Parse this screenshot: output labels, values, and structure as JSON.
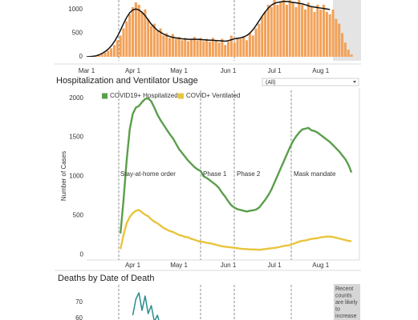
{
  "chart_data": [
    {
      "type": "bar",
      "ylim": [
        0,
        1200
      ],
      "yticks": [
        0,
        500,
        1000
      ],
      "categories": [
        "Mar 1",
        null,
        null,
        null,
        null,
        null,
        null,
        null,
        null,
        null,
        null,
        null,
        null,
        null,
        null,
        "Apr 1",
        null,
        null,
        null,
        null,
        null,
        null,
        null,
        null,
        null,
        null,
        null,
        null,
        null,
        null,
        "May 1",
        null,
        null,
        null,
        null,
        null,
        null,
        null,
        null,
        null,
        null,
        null,
        null,
        null,
        null,
        null,
        "Jun 1",
        null,
        null,
        null,
        null,
        null,
        null,
        null,
        null,
        null,
        null,
        null,
        null,
        null,
        null,
        "Jul 1",
        null,
        null,
        null,
        null,
        null,
        null,
        null,
        null,
        null,
        null,
        null,
        null,
        null,
        null,
        "Aug 1",
        null,
        null,
        null,
        null,
        null,
        null,
        null,
        null,
        null,
        null
      ],
      "series": [
        {
          "type": "bar",
          "color": "#f2a25a",
          "values": [
            0,
            5,
            10,
            20,
            40,
            60,
            90,
            130,
            180,
            250,
            350,
            450,
            600,
            750,
            900,
            1050,
            1150,
            1100,
            950,
            1000,
            800,
            650,
            700,
            550,
            600,
            450,
            500,
            400,
            480,
            380,
            420,
            350,
            400,
            330,
            380,
            420,
            350,
            400,
            330,
            380,
            320,
            400,
            350,
            300,
            380,
            250,
            320,
            450,
            300,
            400,
            380,
            420,
            350,
            500,
            450,
            600,
            700,
            850,
            950,
            1100,
            1050,
            1200,
            1100,
            1150,
            1250,
            1100,
            1200,
            1150,
            1050,
            1200,
            1100,
            1000,
            1150,
            1050,
            950,
            1100,
            1000,
            1100,
            950,
            900,
            1000,
            800,
            700,
            500,
            300,
            150,
            50
          ]
        },
        {
          "type": "line",
          "color": "#111111",
          "values": [
            0,
            5,
            10,
            20,
            40,
            70,
            110,
            160,
            230,
            320,
            430,
            560,
            700,
            830,
            930,
            990,
            1010,
            990,
            940,
            870,
            780,
            690,
            620,
            560,
            520,
            480,
            450,
            430,
            410,
            400,
            390,
            380,
            375,
            370,
            370,
            370,
            370,
            365,
            360,
            355,
            350,
            350,
            345,
            340,
            335,
            330,
            340,
            360,
            380,
            390,
            400,
            420,
            450,
            500,
            570,
            660,
            760,
            860,
            950,
            1030,
            1090,
            1130,
            1150,
            1160,
            1170,
            1170,
            1160,
            1150,
            1140,
            1130,
            1120,
            1100,
            1080,
            1060,
            1050,
            1040,
            1030,
            1020,
            1010,
            1000,
            null,
            null,
            null,
            null,
            null,
            null,
            null
          ]
        }
      ]
    },
    {
      "type": "line",
      "title": "Hospitalization and Ventilator Usage",
      "ylabel": "Number of Cases",
      "ylim": [
        -70,
        2100
      ],
      "yticks": [
        0,
        500,
        1000,
        1500,
        2000
      ],
      "annotations": [
        "Stay-at-home order",
        "Phase 1",
        "Phase 2",
        "Mask mandate"
      ],
      "categories": [
        null,
        null,
        null,
        null,
        null,
        null,
        null,
        null,
        null,
        null,
        null,
        null,
        null,
        null,
        null,
        "Apr 1",
        null,
        null,
        null,
        null,
        null,
        null,
        null,
        null,
        null,
        null,
        null,
        null,
        null,
        null,
        "May 1",
        null,
        null,
        null,
        null,
        null,
        null,
        null,
        null,
        null,
        null,
        null,
        null,
        null,
        null,
        null,
        "Jun 1",
        null,
        null,
        null,
        null,
        null,
        null,
        null,
        null,
        null,
        null,
        null,
        null,
        null,
        null,
        "Jul 1",
        null,
        null,
        null,
        null,
        null,
        null,
        null,
        null,
        null,
        null,
        null,
        null,
        null,
        null,
        "Aug 1",
        null,
        null,
        null,
        null,
        null,
        null,
        null,
        null,
        null,
        null
      ],
      "series": [
        {
          "name": "COVID19+ Hospitalized",
          "color": "#5b9e4c",
          "values": [
            null,
            null,
            null,
            null,
            null,
            null,
            null,
            null,
            null,
            null,
            null,
            270,
            700,
            1200,
            1600,
            1800,
            1880,
            1900,
            1950,
            1990,
            2000,
            1960,
            1880,
            1790,
            1720,
            1660,
            1600,
            1540,
            1490,
            1420,
            1350,
            1300,
            1250,
            1200,
            1160,
            1120,
            1090,
            1070,
            1000,
            980,
            950,
            920,
            890,
            850,
            790,
            740,
            680,
            630,
            600,
            580,
            570,
            560,
            550,
            560,
            565,
            575,
            600,
            650,
            700,
            760,
            830,
            920,
            1010,
            1100,
            1190,
            1280,
            1370,
            1450,
            1510,
            1560,
            1600,
            1610,
            1620,
            1590,
            1580,
            1560,
            1530,
            1500,
            1470,
            1440,
            1400,
            1360,
            1320,
            1270,
            1220,
            1150,
            1050
          ]
        },
        {
          "name": "COVID+ Ventilated",
          "color": "#e8c53c",
          "values": [
            null,
            null,
            null,
            null,
            null,
            null,
            null,
            null,
            null,
            null,
            null,
            70,
            250,
            400,
            480,
            530,
            560,
            570,
            540,
            510,
            490,
            450,
            420,
            400,
            370,
            340,
            320,
            300,
            290,
            270,
            250,
            240,
            225,
            220,
            200,
            190,
            175,
            165,
            160,
            150,
            145,
            135,
            125,
            115,
            105,
            100,
            95,
            90,
            85,
            80,
            75,
            70,
            70,
            65,
            65,
            65,
            60,
            65,
            70,
            75,
            80,
            85,
            90,
            100,
            110,
            115,
            120,
            135,
            150,
            165,
            175,
            180,
            190,
            200,
            205,
            210,
            220,
            225,
            230,
            230,
            225,
            215,
            205,
            195,
            185,
            175,
            170
          ]
        }
      ]
    },
    {
      "type": "line",
      "title": "Deaths by Date of Death",
      "ylim": [
        0,
        80
      ],
      "yticks": [
        60,
        70
      ],
      "note": [
        "Recent",
        "counts",
        "are likely",
        "to",
        "increase"
      ],
      "categories": [
        null,
        null,
        null,
        null,
        null,
        null,
        null,
        null,
        null,
        null,
        null,
        null,
        null,
        null,
        null,
        null,
        null,
        null,
        null,
        null,
        null,
        null,
        null,
        null,
        null,
        null,
        null,
        null,
        null,
        null,
        null,
        null,
        null,
        null,
        null,
        null,
        null,
        null,
        null,
        null,
        null,
        null,
        null,
        null,
        null,
        null,
        null,
        null,
        null,
        null,
        null,
        null,
        null,
        null,
        null,
        null,
        null,
        null,
        null,
        null,
        null,
        null,
        null,
        null,
        null,
        null,
        null,
        null,
        null,
        null,
        null,
        null,
        null,
        null,
        null,
        null,
        null,
        null,
        null,
        null,
        null,
        null,
        null,
        null,
        null,
        null,
        null
      ],
      "series": [
        {
          "color": "#2a8c8c",
          "values": [
            null,
            null,
            null,
            null,
            null,
            null,
            null,
            null,
            null,
            null,
            null,
            null,
            null,
            null,
            null,
            62,
            72,
            76,
            65,
            74,
            63,
            68,
            58,
            62,
            55,
            null,
            null,
            null,
            null,
            null,
            null,
            null,
            null,
            null,
            null,
            null,
            null,
            null,
            null,
            null,
            null,
            null,
            null,
            null,
            null,
            null,
            null,
            null,
            null,
            null,
            null,
            null,
            null,
            null,
            null,
            null,
            null,
            null,
            null,
            null,
            null,
            null,
            null,
            null,
            null,
            null,
            null,
            null,
            null,
            null,
            null,
            null,
            null,
            null,
            null,
            null,
            null,
            null,
            null,
            null,
            null,
            null,
            null,
            null,
            null,
            null,
            null
          ]
        }
      ]
    }
  ],
  "filter": "(All)"
}
